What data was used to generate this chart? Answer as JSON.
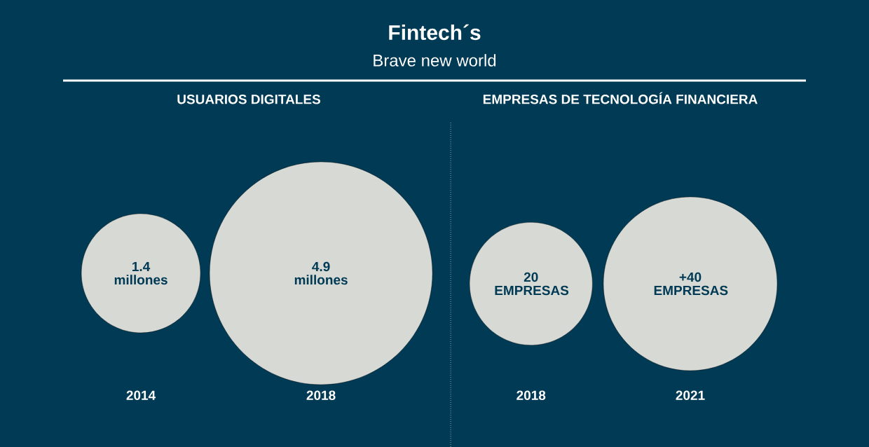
{
  "chart_data": [
    {
      "type": "other",
      "title": "USUARIOS DIGITALES",
      "annotations": [
        "Fintech´s",
        "Brave new world"
      ],
      "categories": [
        "2014",
        "2018"
      ],
      "values": [
        1.4,
        4.9
      ],
      "value_labels": [
        "1.4 millones",
        "4.9 millones"
      ],
      "color": "#d6d9d4"
    },
    {
      "type": "other",
      "title": "EMPRESAS DE TECNOLOGÍA FINANCIERA",
      "categories": [
        "2018",
        "2021"
      ],
      "values": [
        20,
        40
      ],
      "value_labels": [
        "20 EMPRESAS",
        "+40 EMPRESAS"
      ],
      "color": "#d6d9d4"
    }
  ]
}
